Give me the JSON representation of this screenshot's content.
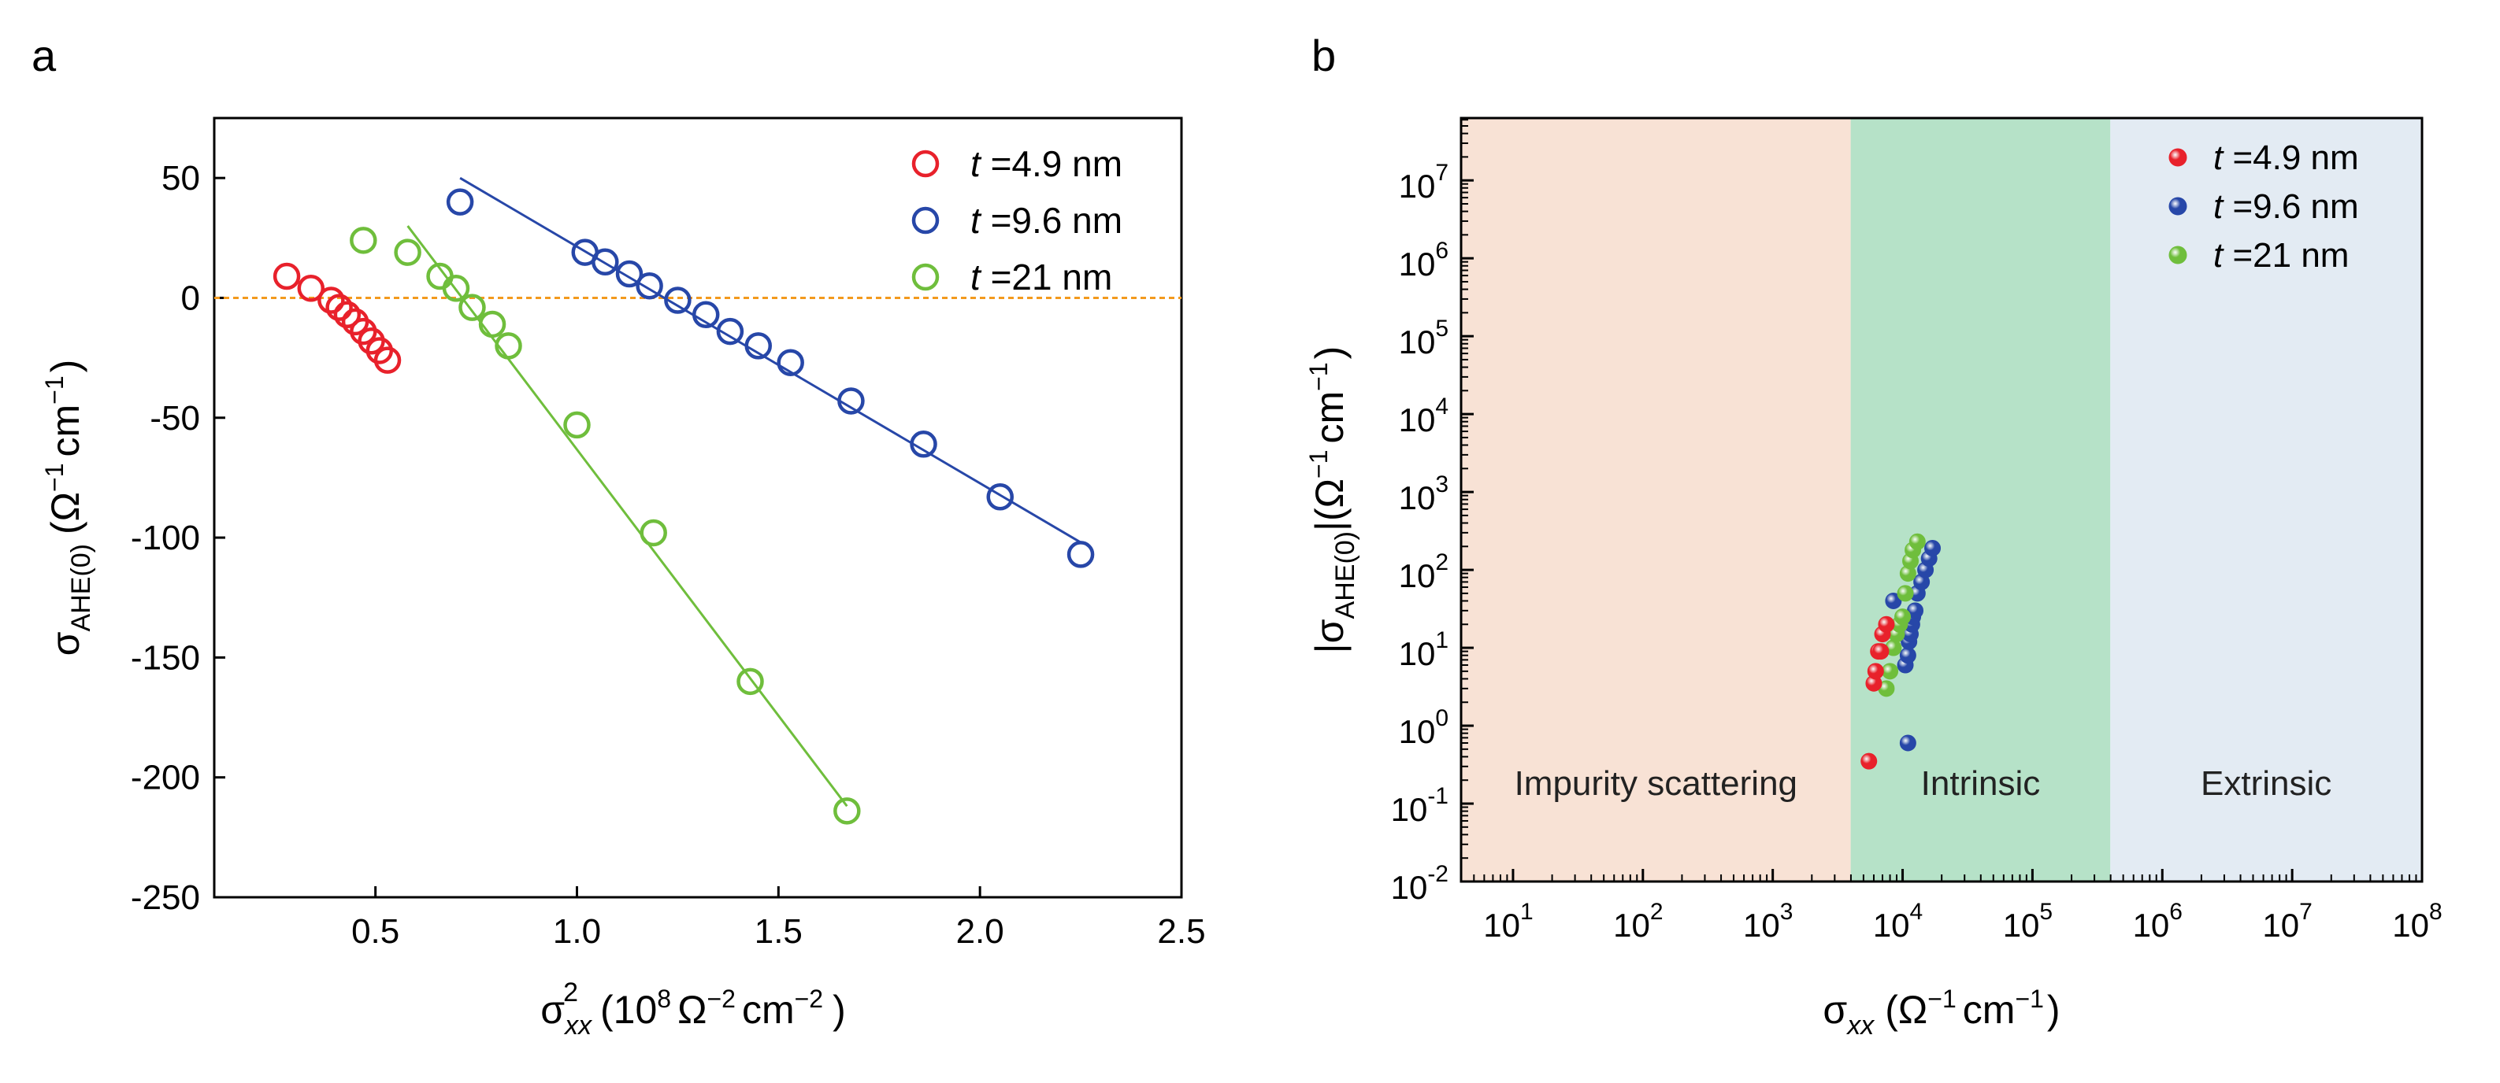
{
  "panels": [
    {
      "letter": "a"
    },
    {
      "letter": "b"
    }
  ],
  "colors": {
    "series": [
      "#e8212b",
      "#2747a8",
      "#6fbe3c"
    ],
    "refline": "#f39a1e",
    "regions": [
      "#f8e2d5",
      "#b6e2c8",
      "#e3ebf3"
    ]
  },
  "chart_data": [
    {
      "type": "scatter",
      "panel": "a",
      "xlabel": {
        "main": "σ",
        "sub": "xx",
        "sup": "2",
        "unit_pre": "(10",
        "unit_pow": "8",
        "unit_post": "Ω",
        "unit_pow2": "−2",
        "unit_mid": "cm",
        "unit_pow3": "−2",
        "unit_end": ")"
      },
      "ylabel": {
        "main": "σ",
        "sub": "AHE(0)",
        "unit": "(Ω",
        "pow1": "−1",
        "mid": "cm",
        "pow2": "−1",
        "end": ")"
      },
      "xlim": [
        0.1,
        2.5
      ],
      "ylim": [
        -250,
        75
      ],
      "xticks": [
        "0.5",
        "1.0",
        "1.5",
        "2.0",
        "2.5"
      ],
      "xtick_values": [
        0.5,
        1.0,
        1.5,
        2.0,
        2.5
      ],
      "yticks": [
        "50",
        "0",
        "-50",
        "-100",
        "-150",
        "-200",
        "-250"
      ],
      "ytick_values": [
        50,
        0,
        -50,
        -100,
        -150,
        -200,
        -250
      ],
      "reference_line_y": 0,
      "series": [
        {
          "label_t": "t",
          "label_rest": "=4.9 nm",
          "x": [
            0.28,
            0.34,
            0.39,
            0.41,
            0.43,
            0.45,
            0.47,
            0.49,
            0.51,
            0.53
          ],
          "y": [
            9,
            4,
            -1,
            -4,
            -7,
            -10,
            -14,
            -18,
            -22,
            -26
          ],
          "fit": null
        },
        {
          "label_t": "t",
          "label_rest": "=9.6 nm",
          "x": [
            0.71,
            1.02,
            1.07,
            1.13,
            1.18,
            1.25,
            1.32,
            1.38,
            1.45,
            1.53,
            1.68,
            1.86,
            2.05,
            2.25
          ],
          "y": [
            40,
            19,
            15,
            10,
            5,
            -1,
            -7,
            -14,
            -20,
            -27,
            -43,
            -61,
            -83,
            -107
          ],
          "fit": [
            [
              0.71,
              50
            ],
            [
              2.25,
              -102
            ]
          ]
        },
        {
          "label_t": "t",
          "label_rest": "=21 nm",
          "x": [
            0.47,
            0.58,
            0.66,
            0.7,
            0.74,
            0.79,
            0.83,
            1.0,
            1.19,
            1.43,
            1.67
          ],
          "y": [
            24,
            19,
            9,
            4,
            -4,
            -11,
            -20,
            -53,
            -98,
            -160,
            -214
          ],
          "fit": [
            [
              0.58,
              30
            ],
            [
              1.67,
              -212
            ]
          ]
        }
      ]
    },
    {
      "type": "scatter",
      "panel": "b",
      "scale": "log-log",
      "xlabel": {
        "main": "σ",
        "sub": "xx",
        "unit": "(Ω",
        "pow1": "−1",
        "mid": "cm",
        "pow2": "−1",
        "end": ")"
      },
      "ylabel": {
        "pre": "|σ",
        "sub": "AHE(0)",
        "post": "|",
        "unit": "(Ω",
        "pow1": "−1",
        "mid": "cm",
        "pow2": "−1",
        "end": ")"
      },
      "xlim_log10": [
        0.6,
        8
      ],
      "ylim_log10": [
        -2,
        7.8
      ],
      "xticks": [
        {
          "base": "10",
          "exp": "1"
        },
        {
          "base": "10",
          "exp": "2"
        },
        {
          "base": "10",
          "exp": "3"
        },
        {
          "base": "10",
          "exp": "4"
        },
        {
          "base": "10",
          "exp": "5"
        },
        {
          "base": "10",
          "exp": "6"
        },
        {
          "base": "10",
          "exp": "7"
        },
        {
          "base": "10",
          "exp": "8"
        }
      ],
      "xtick_values_log10": [
        1,
        2,
        3,
        4,
        5,
        6,
        7,
        8
      ],
      "yticks": [
        {
          "base": "10",
          "exp": "7"
        },
        {
          "base": "10",
          "exp": "6"
        },
        {
          "base": "10",
          "exp": "5"
        },
        {
          "base": "10",
          "exp": "4"
        },
        {
          "base": "10",
          "exp": "3"
        },
        {
          "base": "10",
          "exp": "2"
        },
        {
          "base": "10",
          "exp": "1"
        },
        {
          "base": "10",
          "exp": "0"
        },
        {
          "base": "10",
          "exp": "-1"
        },
        {
          "base": "10",
          "exp": "-2"
        }
      ],
      "ytick_values_log10": [
        7,
        6,
        5,
        4,
        3,
        2,
        1,
        0,
        -1,
        -2
      ],
      "regions": [
        {
          "label": "Impurity scattering",
          "from_log10": 0.6,
          "to_log10": 3.6
        },
        {
          "label": "Intrinsic",
          "from_log10": 3.6,
          "to_log10": 5.6
        },
        {
          "label": "Extrinsic",
          "from_log10": 5.6,
          "to_log10": 8
        }
      ],
      "series": [
        {
          "label_t": "t",
          "label_rest": "=4.9 nm",
          "x": [
            5500,
            6000,
            6200,
            6500,
            6800,
            7000,
            7500
          ],
          "y": [
            0.35,
            3.5,
            5,
            9,
            9,
            15,
            20
          ]
        },
        {
          "label_t": "t",
          "label_rest": "=9.6 nm",
          "x": [
            8500,
            10500,
            11000,
            11200,
            11500,
            11800,
            12000,
            12500,
            13000,
            14000,
            15000,
            16000,
            17000,
            11000
          ],
          "y": [
            40,
            6,
            8,
            12,
            15,
            20,
            25,
            30,
            50,
            70,
            100,
            140,
            190,
            0.6
          ]
        },
        {
          "label_t": "t",
          "label_rest": "=21 nm",
          "x": [
            7500,
            8000,
            8500,
            9000,
            9500,
            10000,
            10500,
            11000,
            11500,
            12000,
            13000
          ],
          "y": [
            3,
            5,
            10,
            15,
            20,
            25,
            50,
            90,
            130,
            180,
            230
          ]
        }
      ]
    }
  ]
}
